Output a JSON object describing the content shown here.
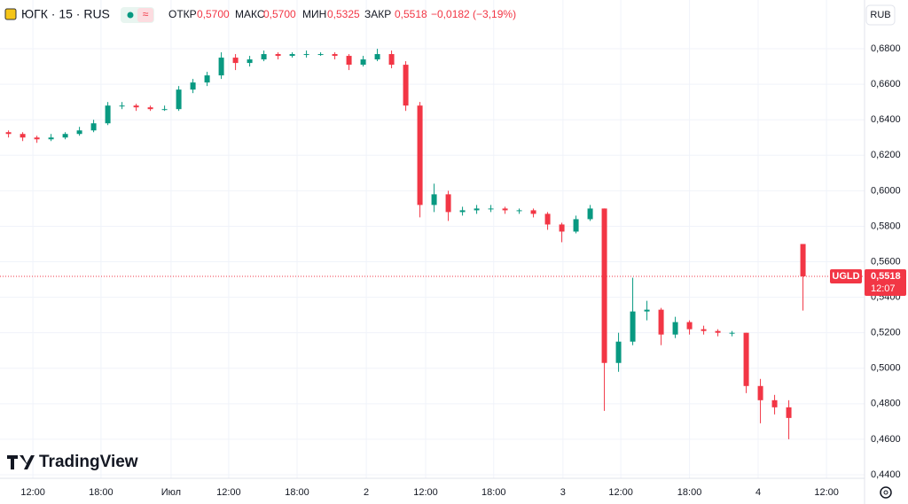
{
  "header": {
    "symbol": "ЮГК · 15 · RUS",
    "open_label": "ОТКР",
    "open": "0,5700",
    "high_label": "МАКС",
    "high": "0,5700",
    "low_label": "МИН",
    "low": "0,5325",
    "close_label": "ЗАКР",
    "close": "0,5518",
    "change": "−0,0182 (−3,19%)",
    "currency": "RUB",
    "logo": "TradingView"
  },
  "chart_data": {
    "type": "candlestick",
    "up_color": "#089981",
    "down_color": "#f23645",
    "x": [
      3,
      8,
      13,
      18,
      23,
      28,
      33,
      38,
      43,
      48,
      53,
      58,
      63,
      68,
      73,
      78,
      83,
      88,
      93,
      98,
      103,
      108,
      113,
      118,
      123,
      128,
      133,
      138,
      143,
      148,
      153,
      158,
      163,
      168,
      173,
      178,
      183,
      188,
      193,
      198,
      203,
      208,
      213,
      218,
      223,
      228,
      233,
      238,
      243,
      248,
      253,
      258,
      263,
      268,
      273,
      278,
      283
    ],
    "open": [
      0.633,
      0.632,
      0.63,
      0.629,
      0.63,
      0.632,
      0.634,
      0.638,
      0.648,
      0.648,
      0.647,
      0.646,
      0.646,
      0.657,
      0.661,
      0.665,
      0.675,
      0.672,
      0.674,
      0.677,
      0.676,
      0.677,
      0.677,
      0.677,
      0.676,
      0.671,
      0.674,
      0.677,
      0.671,
      0.648,
      0.592,
      0.598,
      0.588,
      0.589,
      0.59,
      0.59,
      0.589,
      0.589,
      0.587,
      0.581,
      0.577,
      0.584,
      0.59,
      0.503,
      0.515,
      0.532,
      0.533,
      0.519,
      0.526,
      0.522,
      0.521,
      0.52,
      0.52,
      0.49,
      0.482,
      0.478,
      0.57
    ],
    "high": [
      0.634,
      0.633,
      0.631,
      0.632,
      0.633,
      0.636,
      0.64,
      0.65,
      0.65,
      0.649,
      0.648,
      0.648,
      0.659,
      0.663,
      0.667,
      0.678,
      0.677,
      0.676,
      0.679,
      0.678,
      0.678,
      0.679,
      0.678,
      0.678,
      0.677,
      0.676,
      0.68,
      0.679,
      0.673,
      0.65,
      0.604,
      0.6,
      0.591,
      0.592,
      0.592,
      0.591,
      0.59,
      0.59,
      0.588,
      0.582,
      0.586,
      0.592,
      0.59,
      0.52,
      0.551,
      0.538,
      0.534,
      0.529,
      0.527,
      0.524,
      0.522,
      0.521,
      0.52,
      0.494,
      0.485,
      0.482,
      0.57
    ],
    "low": [
      0.63,
      0.628,
      0.627,
      0.628,
      0.629,
      0.631,
      0.633,
      0.637,
      0.646,
      0.645,
      0.645,
      0.645,
      0.645,
      0.655,
      0.659,
      0.663,
      0.668,
      0.67,
      0.673,
      0.674,
      0.675,
      0.675,
      0.676,
      0.674,
      0.668,
      0.67,
      0.673,
      0.669,
      0.645,
      0.585,
      0.588,
      0.583,
      0.586,
      0.587,
      0.588,
      0.587,
      0.587,
      0.585,
      0.578,
      0.571,
      0.576,
      0.583,
      0.476,
      0.498,
      0.513,
      0.527,
      0.513,
      0.517,
      0.519,
      0.519,
      0.518,
      0.518,
      0.486,
      0.469,
      0.474,
      0.46,
      0.5325
    ],
    "close": [
      0.632,
      0.63,
      0.629,
      0.63,
      0.632,
      0.634,
      0.638,
      0.648,
      0.648,
      0.647,
      0.646,
      0.646,
      0.657,
      0.661,
      0.665,
      0.675,
      0.672,
      0.674,
      0.677,
      0.676,
      0.677,
      0.677,
      0.677,
      0.676,
      0.671,
      0.674,
      0.677,
      0.671,
      0.648,
      0.592,
      0.598,
      0.588,
      0.589,
      0.59,
      0.59,
      0.589,
      0.589,
      0.587,
      0.581,
      0.577,
      0.584,
      0.59,
      0.503,
      0.515,
      0.532,
      0.533,
      0.519,
      0.526,
      0.522,
      0.521,
      0.52,
      0.52,
      0.49,
      0.482,
      0.478,
      0.472,
      0.5518
    ],
    "xlim": [
      0,
      304.7
    ],
    "xticks": [
      {
        "value": 11.6,
        "label": "12:00"
      },
      {
        "value": 35.6,
        "label": "18:00"
      },
      {
        "value": 60.3,
        "label": "Июл"
      },
      {
        "value": 80.6,
        "label": "12:00"
      },
      {
        "value": 104.7,
        "label": "18:00"
      },
      {
        "value": 129.1,
        "label": "2"
      },
      {
        "value": 150,
        "label": "12:00"
      },
      {
        "value": 174,
        "label": "18:00"
      },
      {
        "value": 198.4,
        "label": "3"
      },
      {
        "value": 218.8,
        "label": "12:00"
      },
      {
        "value": 243,
        "label": "18:00"
      },
      {
        "value": 267.2,
        "label": "4"
      },
      {
        "value": 291.3,
        "label": "12:00"
      }
    ],
    "ylim": [
      0.438,
      0.6925
    ],
    "yticks": [
      {
        "value": 0.44,
        "label": "0,4400"
      },
      {
        "value": 0.46,
        "label": "0,4600"
      },
      {
        "value": 0.48,
        "label": "0,4800"
      },
      {
        "value": 0.5,
        "label": "0,5000"
      },
      {
        "value": 0.52,
        "label": "0,5200"
      },
      {
        "value": 0.54,
        "label": "0,5400"
      },
      {
        "value": 0.56,
        "label": "0,5600"
      },
      {
        "value": 0.58,
        "label": "0,5800"
      },
      {
        "value": 0.6,
        "label": "0,6000"
      },
      {
        "value": 0.62,
        "label": "0,6200"
      },
      {
        "value": 0.64,
        "label": "0,6400"
      },
      {
        "value": 0.66,
        "label": "0,6600"
      },
      {
        "value": 0.68,
        "label": "0,6800"
      }
    ],
    "last_price": {
      "ticker": "UGLD",
      "value": 0.5518,
      "label": "0,5518",
      "countdown": "12:07"
    },
    "grid": true
  }
}
